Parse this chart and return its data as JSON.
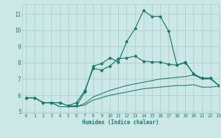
{
  "title": "",
  "xlabel": "Humidex (Indice chaleur)",
  "bg_color": "#cce8e6",
  "grid_color": "#aacfcc",
  "line_color": "#1e7870",
  "spine_color": "#aacfcc",
  "xlim": [
    -0.5,
    23
  ],
  "ylim": [
    4.9,
    11.6
  ],
  "yticks": [
    5,
    6,
    7,
    8,
    9,
    10,
    11
  ],
  "xticks": [
    0,
    1,
    2,
    3,
    4,
    5,
    6,
    7,
    8,
    9,
    10,
    11,
    12,
    13,
    14,
    15,
    16,
    17,
    18,
    19,
    20,
    21,
    22,
    23
  ],
  "series": [
    {
      "x": [
        0,
        1,
        2,
        3,
        4,
        5,
        6,
        7,
        8,
        9,
        10,
        11,
        12,
        13,
        14,
        15,
        16,
        17,
        18,
        19,
        20,
        21,
        22,
        23
      ],
      "y": [
        5.85,
        5.85,
        5.55,
        5.55,
        5.55,
        5.35,
        5.35,
        6.2,
        7.8,
        7.95,
        8.3,
        8.05,
        9.3,
        10.1,
        11.2,
        10.85,
        10.85,
        9.95,
        7.85,
        8.05,
        7.3,
        7.05,
        7.05,
        6.6
      ],
      "marker": "D",
      "markersize": 1.8,
      "linewidth": 0.9
    },
    {
      "x": [
        0,
        1,
        2,
        3,
        4,
        5,
        6,
        7,
        8,
        9,
        10,
        11,
        12,
        13,
        14,
        15,
        16,
        17,
        18,
        19,
        20,
        21,
        22,
        23
      ],
      "y": [
        5.85,
        5.85,
        5.55,
        5.55,
        5.55,
        5.35,
        5.55,
        6.3,
        7.65,
        7.55,
        7.8,
        8.25,
        8.3,
        8.4,
        8.1,
        8.05,
        8.05,
        7.9,
        7.85,
        8.0,
        7.3,
        7.05,
        7.05,
        6.6
      ],
      "marker": "D",
      "markersize": 1.8,
      "linewidth": 0.9
    },
    {
      "x": [
        0,
        1,
        2,
        3,
        4,
        5,
        6,
        7,
        8,
        9,
        10,
        11,
        12,
        13,
        14,
        15,
        16,
        17,
        18,
        19,
        20,
        21,
        22,
        23
      ],
      "y": [
        5.85,
        5.85,
        5.55,
        5.55,
        5.3,
        5.3,
        5.3,
        5.5,
        5.9,
        6.1,
        6.3,
        6.45,
        6.6,
        6.7,
        6.8,
        6.9,
        7.0,
        7.05,
        7.1,
        7.15,
        7.25,
        7.0,
        7.0,
        6.6
      ],
      "marker": null,
      "linewidth": 0.8
    },
    {
      "x": [
        0,
        1,
        2,
        3,
        4,
        5,
        6,
        7,
        8,
        9,
        10,
        11,
        12,
        13,
        14,
        15,
        16,
        17,
        18,
        19,
        20,
        21,
        22,
        23
      ],
      "y": [
        5.85,
        5.85,
        5.55,
        5.55,
        5.3,
        5.3,
        5.3,
        5.4,
        5.7,
        5.85,
        6.0,
        6.1,
        6.2,
        6.3,
        6.4,
        6.45,
        6.5,
        6.55,
        6.6,
        6.6,
        6.65,
        6.5,
        6.5,
        6.55
      ],
      "marker": null,
      "linewidth": 0.8
    }
  ]
}
